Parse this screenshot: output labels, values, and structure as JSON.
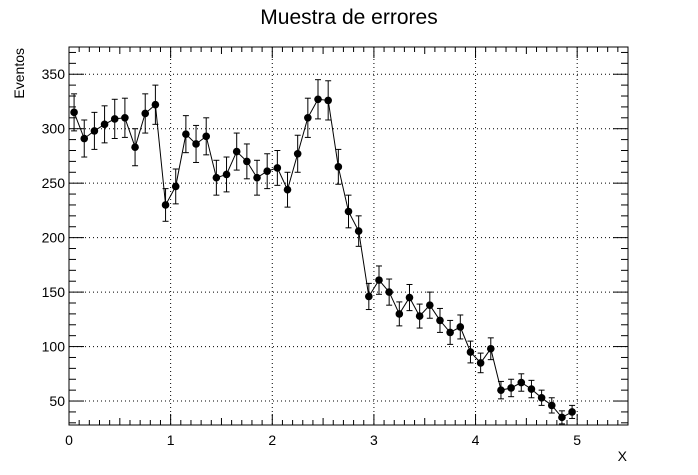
{
  "chart_data": {
    "type": "scatter",
    "title": "Muestra de errores",
    "xlabel": "X",
    "ylabel": "Eventos",
    "xlim": [
      0,
      5.5
    ],
    "ylim": [
      28,
      375
    ],
    "x_ticks": [
      0,
      1,
      2,
      3,
      4,
      5
    ],
    "x_tick_labels": [
      "0",
      "1",
      "2",
      "3",
      "4",
      "5"
    ],
    "y_ticks": [
      50,
      100,
      150,
      200,
      250,
      300,
      350
    ],
    "y_tick_labels": [
      "50",
      "100",
      "150",
      "200",
      "250",
      "300",
      "350"
    ],
    "grid": true,
    "grid_style": "dotted",
    "line_connected": true,
    "marker_color": "#000000",
    "series": [
      {
        "x": [
          0.05,
          0.15,
          0.25,
          0.35,
          0.45,
          0.55,
          0.65,
          0.75,
          0.85,
          0.95,
          1.05,
          1.15,
          1.25,
          1.35,
          1.45,
          1.55,
          1.65,
          1.75,
          1.85,
          1.95,
          2.05,
          2.15,
          2.25,
          2.35,
          2.45,
          2.55,
          2.65,
          2.75,
          2.85,
          2.95,
          3.05,
          3.15,
          3.25,
          3.35,
          3.45,
          3.55,
          3.65,
          3.75,
          3.85,
          3.95,
          4.05,
          4.15,
          4.25,
          4.35,
          4.45,
          4.55,
          4.65,
          4.75,
          4.85,
          4.95
        ],
        "y": [
          315,
          291,
          298,
          304,
          309,
          310,
          283,
          314,
          322,
          230,
          247,
          295,
          286,
          293,
          255,
          258,
          279,
          270,
          255,
          261,
          264,
          244,
          277,
          310,
          327,
          326,
          265,
          224,
          206,
          146,
          161,
          150,
          130,
          145,
          128,
          138,
          124,
          113,
          118,
          95,
          85,
          98,
          60,
          62,
          67,
          61,
          53,
          46,
          35,
          40
        ],
        "errors": [
          17,
          17,
          17,
          17,
          18,
          18,
          17,
          18,
          18,
          15,
          16,
          17,
          17,
          17,
          16,
          16,
          17,
          16,
          16,
          16,
          16,
          16,
          17,
          18,
          18,
          18,
          16,
          15,
          14,
          12,
          13,
          12,
          11,
          12,
          11,
          12,
          11,
          11,
          11,
          10,
          9,
          10,
          8,
          8,
          8,
          8,
          7,
          7,
          6,
          6
        ]
      }
    ]
  }
}
